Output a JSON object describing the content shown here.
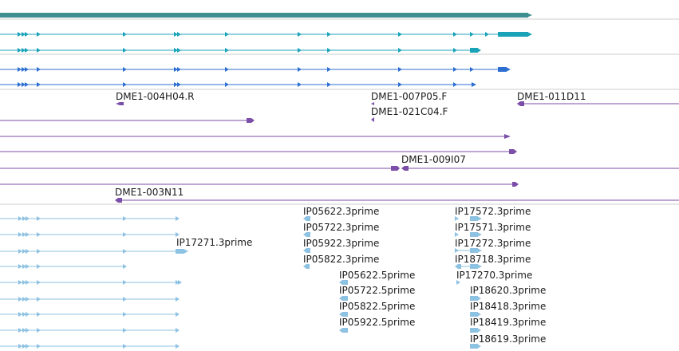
{
  "viewer": {
    "colors": {
      "gene": "#3d8f8f",
      "transcript_teal": "#1aa3b8",
      "transcript_blue": "#2d6fd0",
      "est": "#7b4ea8",
      "cdna": "#8ec2e2",
      "separator": "#cccccc"
    },
    "gene_track": {
      "icon": "gene-bar"
    },
    "transcript_track": {
      "transcripts": [
        {
          "color": "teal"
        },
        {
          "color": "teal"
        },
        {
          "color": "blue"
        },
        {
          "color": "blue"
        }
      ]
    },
    "est_track": {
      "labels": [
        "DME1-004H04.R",
        "DME1-007P05.F",
        "DME1-011D11",
        "DME1-021C04.F",
        "DME1-009I07",
        "DME1-003N11"
      ]
    },
    "cdna_track": {
      "labels": [
        "IP17271.3prime",
        "IP05622.3prime",
        "IP05722.3prime",
        "IP05922.3prime",
        "IP05822.3prime",
        "IP05622.5prime",
        "IP05722.5prime",
        "IP05822.5prime",
        "IP05922.5prime",
        "IP17572.3prime",
        "IP17571.3prime",
        "IP17272.3prime",
        "IP18718.3prime",
        "IP17270.3prime",
        "IP18620.3prime",
        "IP18418.3prime",
        "IP18419.3prime",
        "IP18619.3prime"
      ]
    }
  }
}
